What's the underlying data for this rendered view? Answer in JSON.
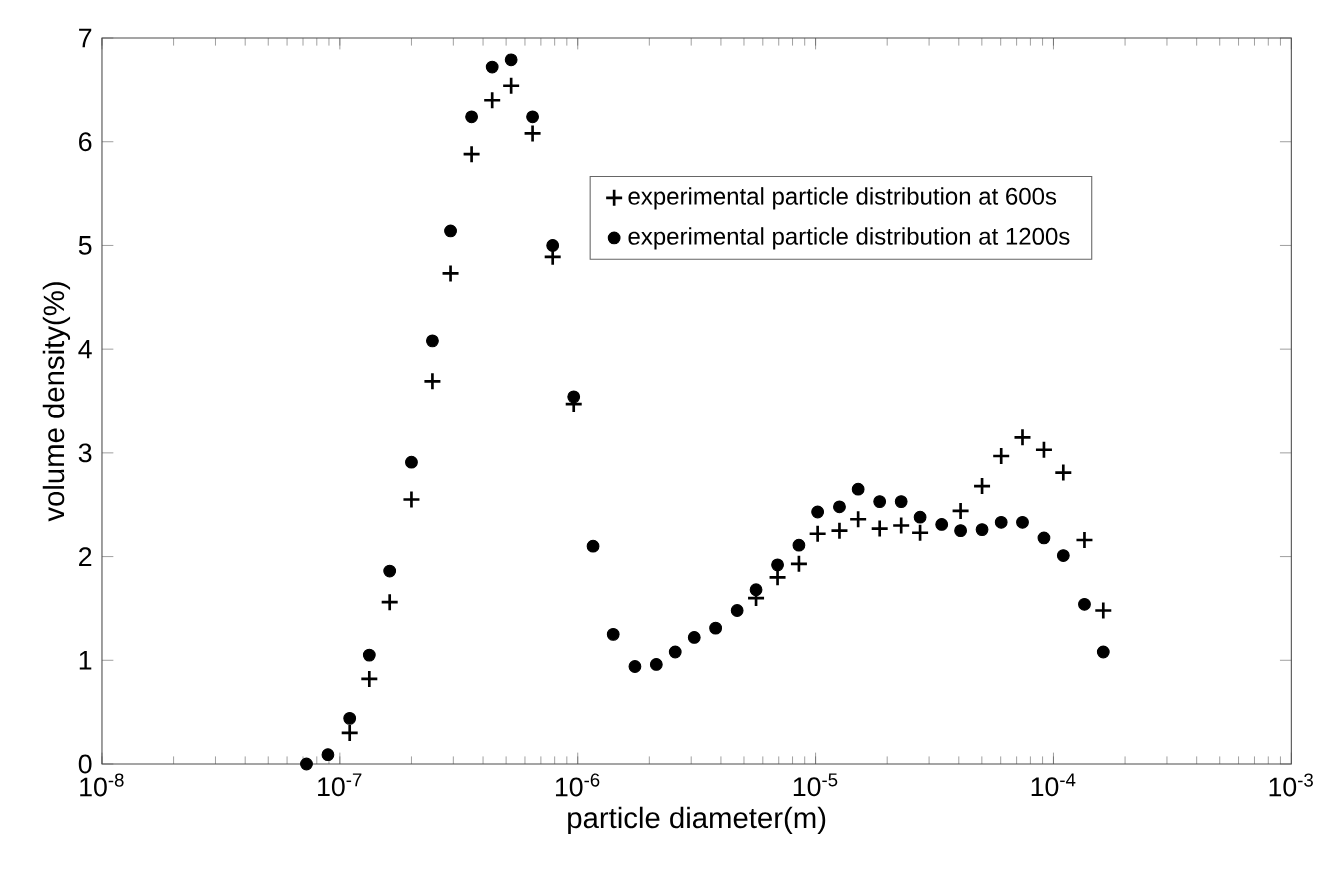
{
  "chart_data": {
    "type": "scatter",
    "xlabel": "particle diameter(m)",
    "ylabel": "volume density(%)",
    "x": [
      7.24e-08,
      8.91e-08,
      1.1e-07,
      1.33e-07,
      1.62e-07,
      2e-07,
      2.45e-07,
      2.92e-07,
      3.58e-07,
      4.37e-07,
      5.25e-07,
      6.46e-07,
      7.85e-07,
      9.62e-07,
      1.16e-06,
      1.41e-06,
      1.74e-06,
      2.14e-06,
      2.57e-06,
      3.09e-06,
      3.8e-06,
      4.68e-06,
      5.62e-06,
      6.92e-06,
      8.51e-06,
      1.02e-05,
      1.26e-05,
      1.51e-05,
      1.86e-05,
      2.29e-05,
      2.75e-05,
      3.39e-05,
      4.07e-05,
      5.01e-05,
      6.03e-05,
      7.41e-05,
      9.12e-05,
      0.00011,
      0.000135,
      0.000162
    ],
    "series": [
      {
        "name": "experimental particle distribution at 600s",
        "color": "#000000",
        "marker": "cross",
        "values": [
          null,
          null,
          0.3,
          0.82,
          1.56,
          2.55,
          3.69,
          4.73,
          5.88,
          6.4,
          6.54,
          6.08,
          4.89,
          3.47,
          null,
          null,
          null,
          null,
          null,
          null,
          null,
          null,
          1.6,
          1.8,
          1.93,
          2.22,
          2.25,
          2.36,
          2.27,
          2.3,
          2.23,
          null,
          2.44,
          2.68,
          2.97,
          3.15,
          3.03,
          2.81,
          2.16,
          1.48
        ]
      },
      {
        "name": "experimental particle distribution at 1200s",
        "color": "#000000",
        "marker": "circle",
        "values": [
          0.0,
          0.09,
          0.44,
          1.05,
          1.86,
          2.91,
          4.08,
          5.14,
          6.24,
          6.72,
          6.79,
          6.24,
          5.0,
          3.54,
          2.1,
          1.25,
          0.94,
          0.96,
          1.08,
          1.22,
          1.31,
          1.48,
          1.68,
          1.92,
          2.11,
          2.43,
          2.48,
          2.65,
          2.53,
          2.53,
          2.38,
          2.31,
          2.25,
          2.26,
          2.33,
          2.33,
          2.18,
          2.01,
          1.54,
          1.08
        ]
      }
    ],
    "log": "x",
    "xlim": [
      1e-08,
      0.001
    ],
    "ylim": [
      0,
      7
    ],
    "xticks": [
      {
        "value": 1e-08,
        "label": "10$^{-8}$"
      },
      {
        "value": 1e-07,
        "label": "10$^{-7}$"
      },
      {
        "value": 1e-06,
        "label": "10$^{-6}$"
      },
      {
        "value": 1e-05,
        "label": "10$^{-5}$"
      },
      {
        "value": 0.0001,
        "label": "10$^{-4}$"
      },
      {
        "value": 0.001,
        "label": "10$^{-3}$"
      }
    ],
    "yticks": [
      0,
      1,
      2,
      3,
      4,
      5,
      6,
      7
    ],
    "grid": false,
    "legend": "top right"
  }
}
